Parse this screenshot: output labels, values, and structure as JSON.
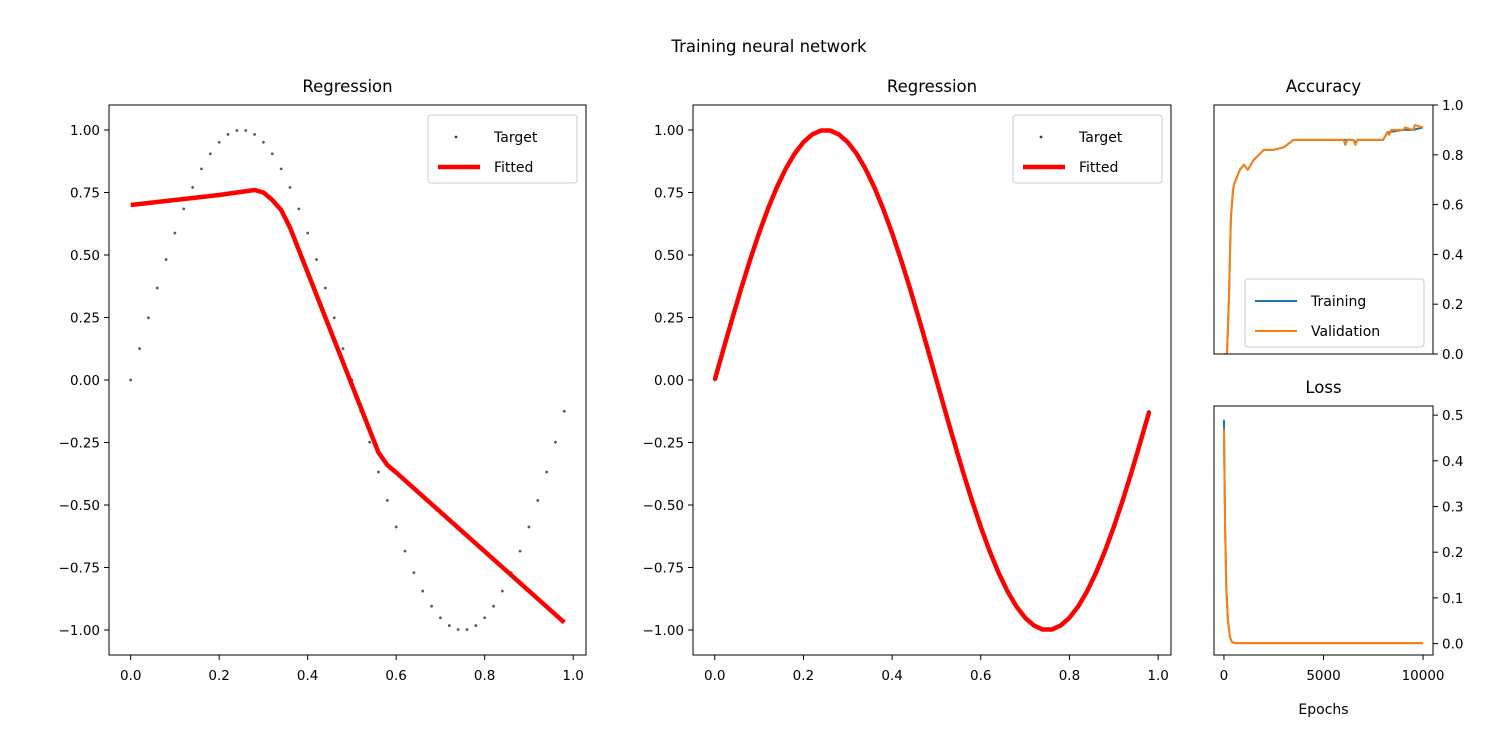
{
  "figure": {
    "title": "Training neural network"
  },
  "chart_data": [
    {
      "id": "reg1",
      "type": "scatter+line",
      "title": "Regression",
      "xlabel": "",
      "ylabel": "",
      "xlim": [
        -0.049,
        1.029
      ],
      "ylim": [
        -1.1,
        1.1
      ],
      "xticks": [
        {
          "v": 0.0,
          "label": "0.0"
        },
        {
          "v": 0.2,
          "label": "0.2"
        },
        {
          "v": 0.4,
          "label": "0.4"
        },
        {
          "v": 0.6,
          "label": "0.6"
        },
        {
          "v": 0.8,
          "label": "0.8"
        },
        {
          "v": 1.0,
          "label": "1.0"
        }
      ],
      "yticks": [
        {
          "v": 1.0,
          "label": "1.00"
        },
        {
          "v": 0.75,
          "label": "0.75"
        },
        {
          "v": 0.5,
          "label": "0.50"
        },
        {
          "v": 0.25,
          "label": "0.25"
        },
        {
          "v": 0.0,
          "label": "0.00"
        },
        {
          "v": -0.25,
          "label": "−0.25"
        },
        {
          "v": -0.5,
          "label": "−0.50"
        },
        {
          "v": -0.75,
          "label": "−0.75"
        },
        {
          "v": -1.0,
          "label": "−1.00"
        }
      ],
      "legend": {
        "position": "upper right",
        "entries": [
          "Target",
          "Fitted"
        ]
      },
      "series": [
        {
          "name": "Target",
          "kind": "scatter",
          "color": "#404040",
          "x_range": [
            0.0,
            0.98
          ],
          "x_step": 0.02,
          "function": "sin(2πx)"
        },
        {
          "name": "Fitted",
          "kind": "line",
          "color": "#ff0000",
          "x": [
            0.0,
            0.1,
            0.2,
            0.26,
            0.28,
            0.3,
            0.32,
            0.34,
            0.36,
            0.4,
            0.5,
            0.56,
            0.58,
            0.6,
            0.98
          ],
          "y": [
            0.7,
            0.72,
            0.74,
            0.755,
            0.76,
            0.75,
            0.72,
            0.68,
            0.61,
            0.43,
            -0.02,
            -0.29,
            -0.34,
            -0.37,
            -0.97
          ]
        }
      ]
    },
    {
      "id": "reg2",
      "type": "scatter+line",
      "title": "Regression",
      "xlabel": "",
      "ylabel": "",
      "xlim": [
        -0.049,
        1.029
      ],
      "ylim": [
        -1.1,
        1.1
      ],
      "xticks": [
        {
          "v": 0.0,
          "label": "0.0"
        },
        {
          "v": 0.2,
          "label": "0.2"
        },
        {
          "v": 0.4,
          "label": "0.4"
        },
        {
          "v": 0.6,
          "label": "0.6"
        },
        {
          "v": 0.8,
          "label": "0.8"
        },
        {
          "v": 1.0,
          "label": "1.0"
        }
      ],
      "yticks": [
        {
          "v": 1.0,
          "label": "1.00"
        },
        {
          "v": 0.75,
          "label": "0.75"
        },
        {
          "v": 0.5,
          "label": "0.50"
        },
        {
          "v": 0.25,
          "label": "0.25"
        },
        {
          "v": 0.0,
          "label": "0.00"
        },
        {
          "v": -0.25,
          "label": "−0.25"
        },
        {
          "v": -0.5,
          "label": "−0.50"
        },
        {
          "v": -0.75,
          "label": "−0.75"
        },
        {
          "v": -1.0,
          "label": "−1.00"
        }
      ],
      "legend": {
        "position": "upper right",
        "entries": [
          "Target",
          "Fitted"
        ]
      },
      "series": [
        {
          "name": "Target",
          "kind": "scatter",
          "color": "#404040",
          "x_range": [
            0.0,
            0.98
          ],
          "x_step": 0.02,
          "function": "sin(2πx)"
        },
        {
          "name": "Fitted",
          "kind": "line",
          "color": "#ff0000",
          "x_range": [
            0.0,
            0.98
          ],
          "x_step": 0.02,
          "function": "sin(2πx)"
        }
      ]
    },
    {
      "id": "acc",
      "type": "line",
      "title": "Accuracy",
      "xlabel": "",
      "ylabel": "",
      "xlim": [
        -500,
        10500
      ],
      "ylim": [
        0.0,
        1.0
      ],
      "y_axis_side": "right",
      "xticks": [],
      "yticks": [
        {
          "v": 0.0,
          "label": "0.0"
        },
        {
          "v": 0.2,
          "label": "0.2"
        },
        {
          "v": 0.4,
          "label": "0.4"
        },
        {
          "v": 0.6,
          "label": "0.6"
        },
        {
          "v": 0.8,
          "label": "0.8"
        },
        {
          "v": 1.0,
          "label": "1.0"
        }
      ],
      "legend": {
        "position": "lower right",
        "entries": [
          "Training",
          "Validation"
        ]
      },
      "series": [
        {
          "name": "Training",
          "color": "#1f77b4",
          "x": [
            0,
            150,
            200,
            260,
            300,
            350,
            400,
            450,
            500,
            600,
            700,
            800,
            1000,
            1200,
            1500,
            2000,
            2500,
            3000,
            3500,
            5000,
            6500,
            6600,
            6700,
            6800,
            7000,
            8000,
            8200,
            9000,
            9500,
            10000
          ],
          "y": [
            0.0,
            0.0,
            0.1,
            0.25,
            0.4,
            0.55,
            0.6,
            0.65,
            0.68,
            0.7,
            0.72,
            0.74,
            0.76,
            0.74,
            0.78,
            0.82,
            0.82,
            0.83,
            0.86,
            0.86,
            0.86,
            0.85,
            0.86,
            0.86,
            0.86,
            0.86,
            0.89,
            0.9,
            0.9,
            0.91
          ]
        },
        {
          "name": "Validation",
          "color": "#ff7f0e",
          "x": [
            0,
            150,
            200,
            260,
            300,
            350,
            400,
            450,
            500,
            600,
            700,
            800,
            1000,
            1200,
            1500,
            2000,
            2500,
            3000,
            3500,
            5000,
            6000,
            6100,
            6200,
            6500,
            6600,
            6700,
            6800,
            7000,
            8000,
            8200,
            8300,
            8400,
            9000,
            9100,
            9500,
            9600,
            10000
          ],
          "y": [
            0.0,
            0.0,
            0.1,
            0.25,
            0.4,
            0.55,
            0.6,
            0.66,
            0.68,
            0.7,
            0.72,
            0.74,
            0.76,
            0.74,
            0.78,
            0.82,
            0.82,
            0.83,
            0.86,
            0.86,
            0.86,
            0.84,
            0.86,
            0.86,
            0.84,
            0.86,
            0.86,
            0.86,
            0.86,
            0.89,
            0.88,
            0.9,
            0.9,
            0.91,
            0.9,
            0.92,
            0.91
          ]
        }
      ]
    },
    {
      "id": "loss",
      "type": "line",
      "title": "Loss",
      "xlabel": "Epochs",
      "ylabel": "",
      "xlim": [
        -500,
        10500
      ],
      "ylim": [
        -0.025,
        0.52
      ],
      "y_axis_side": "right",
      "xticks": [
        {
          "v": 0,
          "label": "0"
        },
        {
          "v": 5000,
          "label": "5000"
        },
        {
          "v": 10000,
          "label": "10000"
        }
      ],
      "yticks": [
        {
          "v": 0.0,
          "label": "0.0"
        },
        {
          "v": 0.1,
          "label": "0.1"
        },
        {
          "v": 0.2,
          "label": "0.2"
        },
        {
          "v": 0.3,
          "label": "0.3"
        },
        {
          "v": 0.4,
          "label": "0.4"
        },
        {
          "v": 0.5,
          "label": "0.5"
        }
      ],
      "legend": null,
      "series": [
        {
          "name": "Training",
          "color": "#1f77b4",
          "x": [
            0,
            20,
            60,
            120,
            200,
            300,
            400,
            600,
            1000,
            10000
          ],
          "y": [
            0.49,
            0.4,
            0.25,
            0.12,
            0.05,
            0.015,
            0.003,
            0.001,
            0.001,
            0.001
          ]
        },
        {
          "name": "Validation",
          "color": "#ff7f0e",
          "x": [
            0,
            20,
            60,
            120,
            200,
            300,
            400,
            600,
            1000,
            10000
          ],
          "y": [
            0.47,
            0.39,
            0.25,
            0.12,
            0.05,
            0.015,
            0.003,
            0.001,
            0.001,
            0.001
          ]
        }
      ]
    }
  ]
}
